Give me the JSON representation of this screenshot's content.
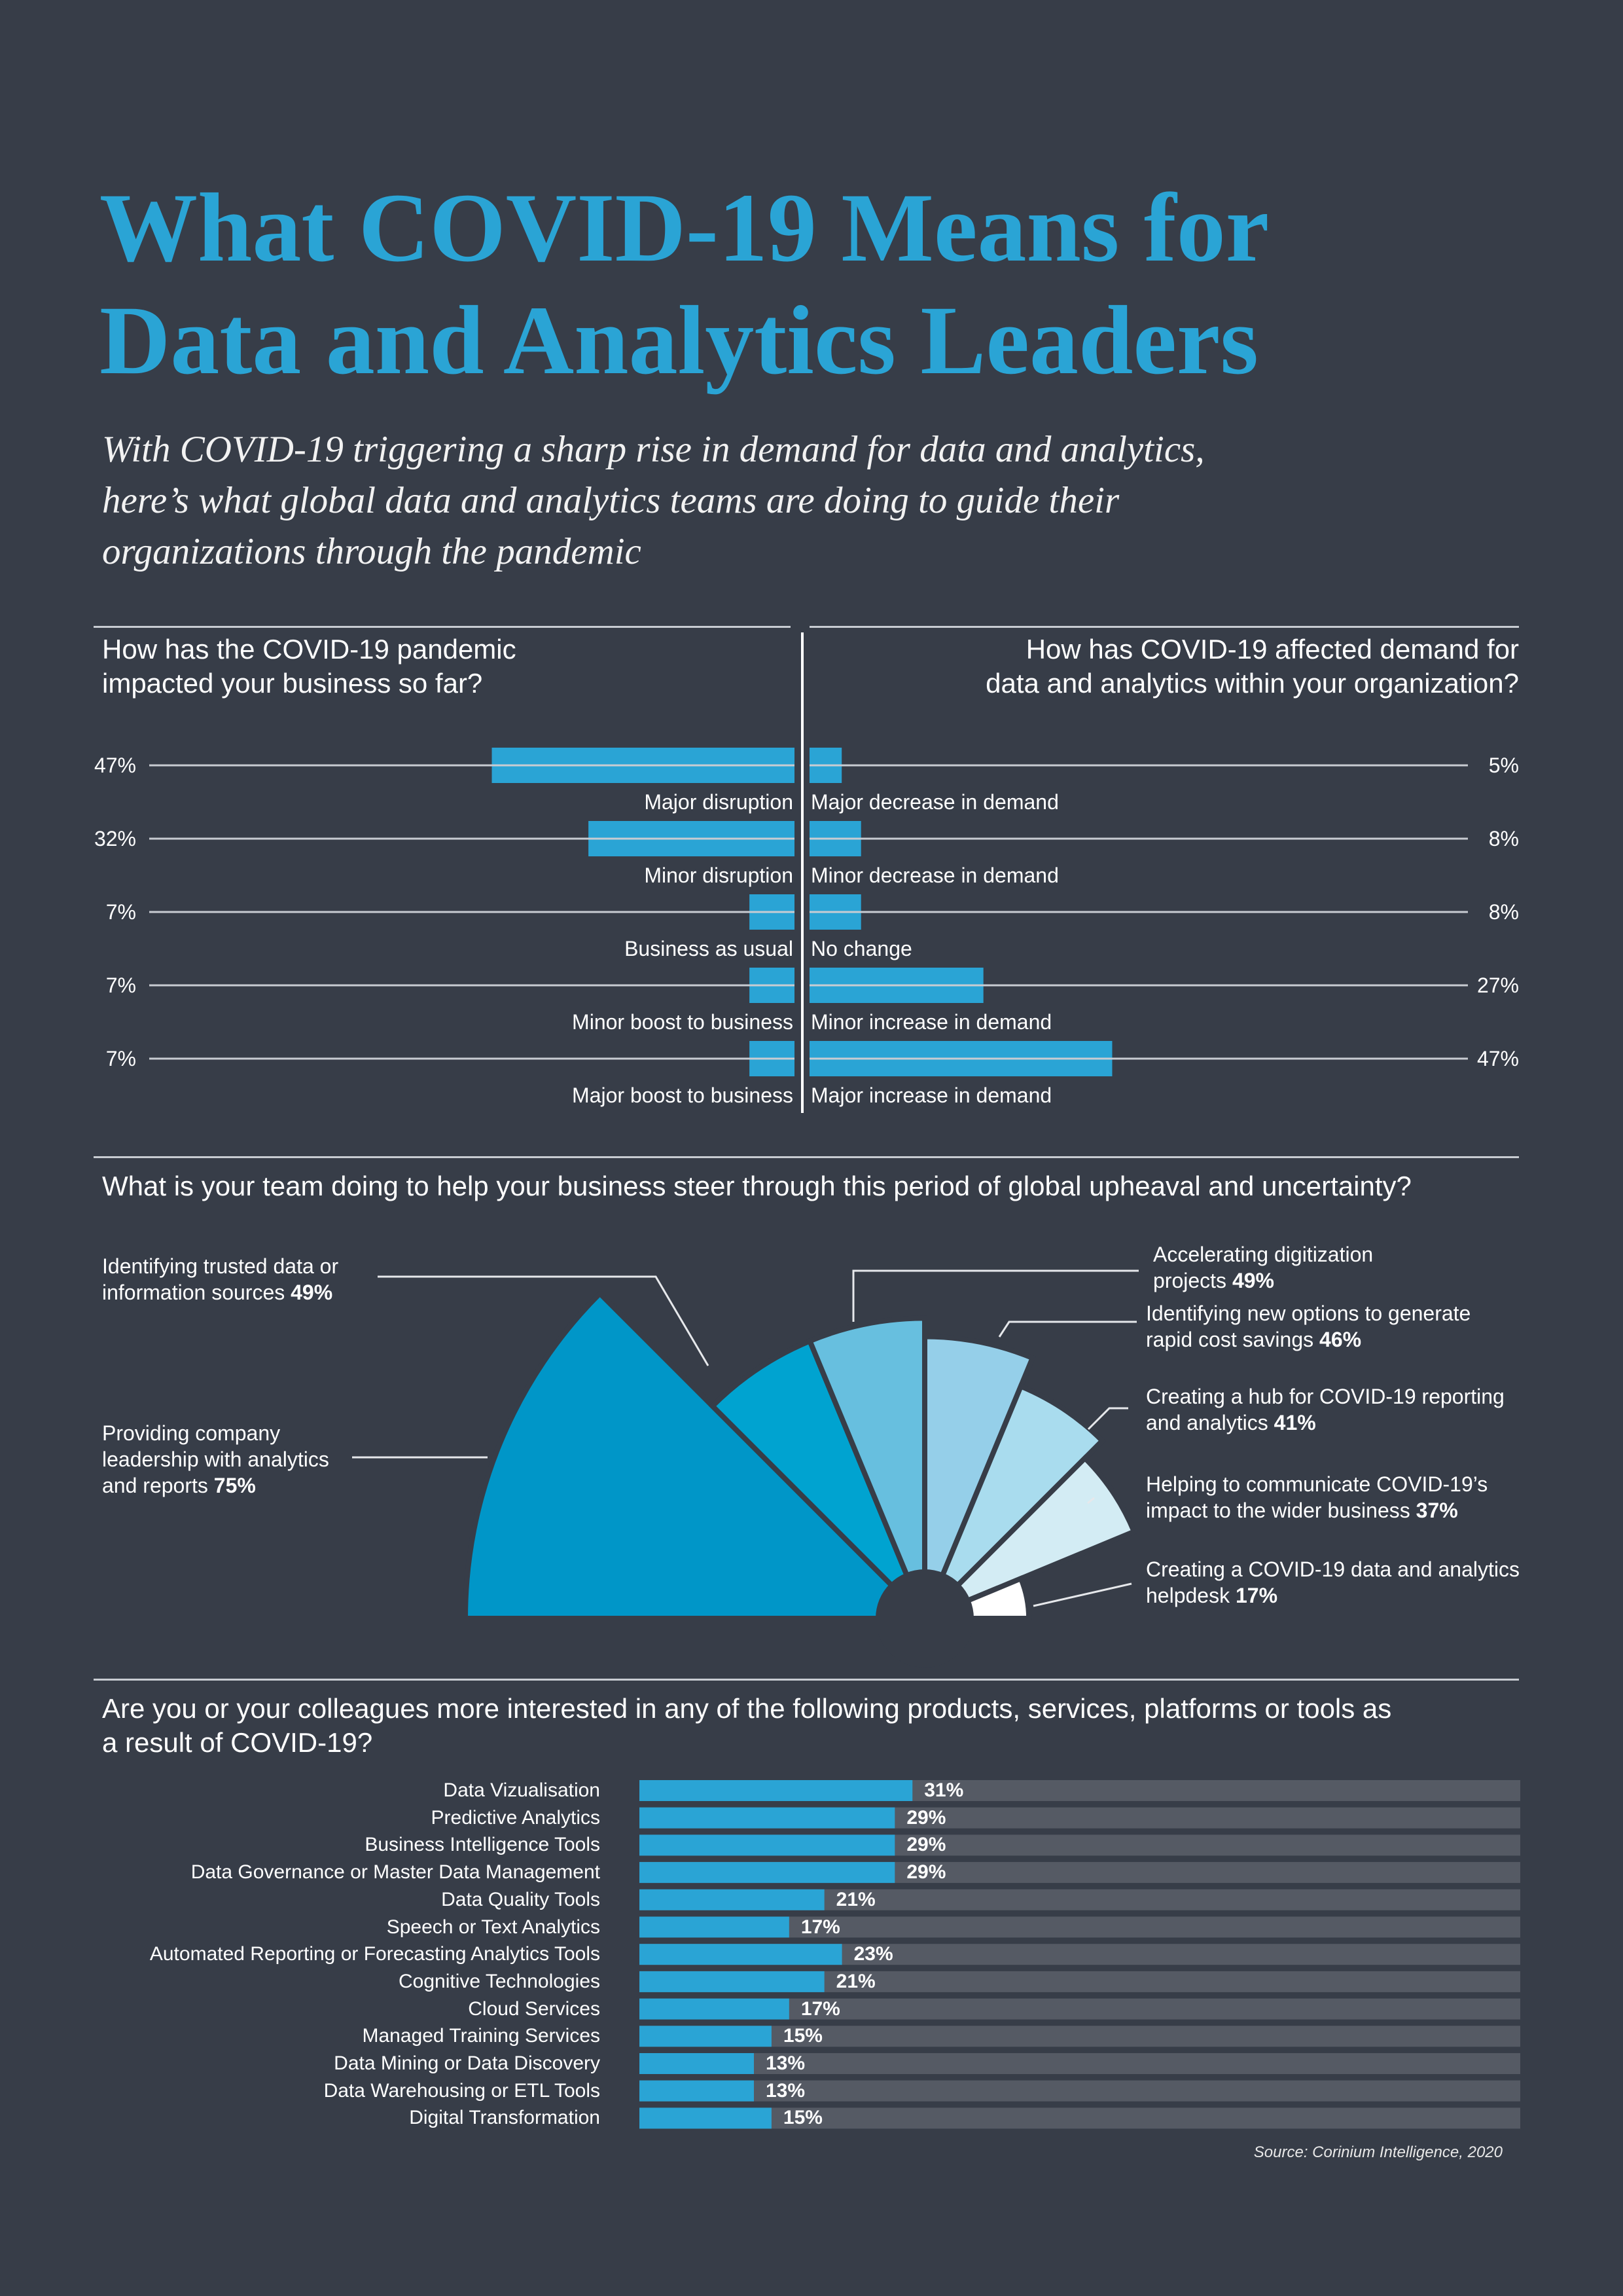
{
  "header": {
    "title_lines": [
      "What COVID-19 Means for",
      "Data and Analytics Leaders"
    ],
    "subtitle_lines": [
      "With COVID-19 triggering a sharp rise in demand for data and analytics,",
      "here’s what global data and analytics teams are doing to guide their",
      "organizations through the pandemic"
    ]
  },
  "colors": {
    "background": "#373d48",
    "accent": "#2aa4d5",
    "track": "#555a64",
    "rule": "#c8ccd2"
  },
  "chart_data": [
    {
      "type": "bar",
      "orientation": "horizontal",
      "title_lines": [
        "How has the COVID-19 pandemic",
        "impacted your business so far?"
      ],
      "categories": [
        "Major disruption",
        "Minor disruption",
        "Business as usual",
        "Minor boost to business",
        "Major boost to business"
      ],
      "values": [
        47,
        32,
        7,
        7,
        7
      ],
      "labels": [
        "47%",
        "32%",
        "7%",
        "7%",
        "7%"
      ],
      "unit": "%",
      "direction": "leftward"
    },
    {
      "type": "bar",
      "orientation": "horizontal",
      "title_lines": [
        "How has COVID-19 affected demand for",
        "data and analytics within your organization?"
      ],
      "categories": [
        "Major decrease in demand",
        "Minor decrease in demand",
        "No change",
        "Minor increase in demand",
        "Major increase in demand"
      ],
      "values": [
        5,
        8,
        8,
        27,
        47
      ],
      "labels": [
        "5%",
        "8%",
        "8%",
        "27%",
        "47%"
      ],
      "unit": "%",
      "direction": "rightward"
    },
    {
      "type": "polar-area",
      "title": "What is your team doing to help your business steer through this period of global upheaval and uncertainty?",
      "items": [
        {
          "lines": [
            "Providing company",
            "leadership with analytics",
            "and reports"
          ],
          "label": "75%",
          "value": 75,
          "color": "#0096c8"
        },
        {
          "lines": [
            "Identifying trusted data or",
            "information sources"
          ],
          "label": "49%",
          "value": 49,
          "color": "#00a3d0"
        },
        {
          "lines": [
            "Accelerating digitization",
            " projects"
          ],
          "label": "49%",
          "value": 49,
          "color": "#67bfdf"
        },
        {
          "lines": [
            "Identifying new options to generate",
            "rapid cost savings"
          ],
          "label": "46%",
          "value": 46,
          "color": "#95cfe9"
        },
        {
          "lines": [
            "Creating a hub for COVID-19 reporting",
            "and analytics"
          ],
          "label": "41%",
          "value": 41,
          "color": "#a9dcee"
        },
        {
          "lines": [
            "Helping to communicate COVID-19’s",
            "impact to the wider business"
          ],
          "label": "37%",
          "value": 37,
          "color": "#d3ecf4"
        },
        {
          "lines": [
            "Creating a COVID-19 data and analytics",
            "helpdesk"
          ],
          "label": "17%",
          "value": 17,
          "color": "#ffffff"
        }
      ]
    },
    {
      "type": "bar",
      "orientation": "horizontal",
      "title_lines": [
        "Are you or your colleagues more interested in any of the following products, services, platforms or tools as",
        "a result of COVID-19?"
      ],
      "categories": [
        "Data Vizualisation",
        "Predictive Analytics",
        "Business Intelligence Tools",
        "Data Governance or Master Data Management",
        "Data Quality Tools",
        "Speech or Text Analytics",
        "Automated Reporting or Forecasting Analytics Tools",
        "Cognitive Technologies",
        "Cloud Services",
        "Managed Training Services",
        "Data Mining or Data Discovery",
        "Data Warehousing or ETL Tools",
        "Digital Transformation"
      ],
      "values": [
        31,
        29,
        29,
        29,
        21,
        17,
        23,
        21,
        17,
        15,
        13,
        13,
        15
      ],
      "labels": [
        "31%",
        "29%",
        "29%",
        "29%",
        "21%",
        "17%",
        "23%",
        "21%",
        "17%",
        "15%",
        "13%",
        "13%",
        "15%"
      ],
      "xlim": [
        0,
        100
      ],
      "unit": "%"
    }
  ],
  "footer": {
    "source": "Source: Corinium Intelligence, 2020"
  }
}
